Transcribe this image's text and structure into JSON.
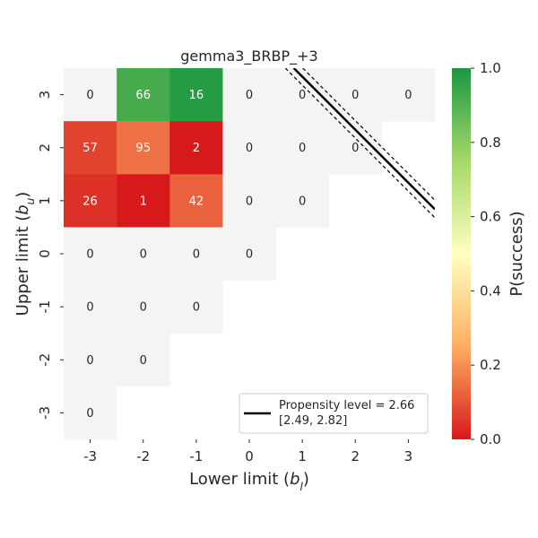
{
  "chart_data": {
    "type": "heatmap",
    "title": "gemma3_BRBP_+3",
    "xlabel": "Lower limit (b_l)",
    "ylabel": "Upper limit (b_u)",
    "x_categories": [
      "-3",
      "-2",
      "-1",
      "0",
      "1",
      "2",
      "3"
    ],
    "y_categories": [
      "3",
      "2",
      "1",
      "0",
      "-1",
      "-2",
      "-3"
    ],
    "cells": [
      {
        "x": "-3",
        "y": "3",
        "count": "0",
        "p": null
      },
      {
        "x": "-2",
        "y": "3",
        "count": "66",
        "p": 0.92
      },
      {
        "x": "-1",
        "y": "3",
        "count": "16",
        "p": 0.98
      },
      {
        "x": "0",
        "y": "3",
        "count": "0",
        "p": null
      },
      {
        "x": "1",
        "y": "3",
        "count": "0",
        "p": null
      },
      {
        "x": "2",
        "y": "3",
        "count": "0",
        "p": null
      },
      {
        "x": "3",
        "y": "3",
        "count": "0",
        "p": null
      },
      {
        "x": "-3",
        "y": "2",
        "count": "57",
        "p": 0.07
      },
      {
        "x": "-2",
        "y": "2",
        "count": "95",
        "p": 0.15
      },
      {
        "x": "-1",
        "y": "2",
        "count": "2",
        "p": 0.0
      },
      {
        "x": "0",
        "y": "2",
        "count": "0",
        "p": null
      },
      {
        "x": "1",
        "y": "2",
        "count": "0",
        "p": null
      },
      {
        "x": "2",
        "y": "2",
        "count": "0",
        "p": null
      },
      {
        "x": "-3",
        "y": "1",
        "count": "26",
        "p": 0.04
      },
      {
        "x": "-2",
        "y": "1",
        "count": "1",
        "p": 0.0
      },
      {
        "x": "-1",
        "y": "1",
        "count": "42",
        "p": 0.12
      },
      {
        "x": "0",
        "y": "1",
        "count": "0",
        "p": null
      },
      {
        "x": "1",
        "y": "1",
        "count": "0",
        "p": null
      },
      {
        "x": "-3",
        "y": "0",
        "count": "0",
        "p": null
      },
      {
        "x": "-2",
        "y": "0",
        "count": "0",
        "p": null
      },
      {
        "x": "-1",
        "y": "0",
        "count": "0",
        "p": null
      },
      {
        "x": "0",
        "y": "0",
        "count": "0",
        "p": null
      },
      {
        "x": "-3",
        "y": "-1",
        "count": "0",
        "p": null
      },
      {
        "x": "-2",
        "y": "-1",
        "count": "0",
        "p": null
      },
      {
        "x": "-1",
        "y": "-1",
        "count": "0",
        "p": null
      },
      {
        "x": "-3",
        "y": "-2",
        "count": "0",
        "p": null
      },
      {
        "x": "-2",
        "y": "-2",
        "count": "0",
        "p": null
      },
      {
        "x": "-3",
        "y": "-3",
        "count": "0",
        "p": null
      }
    ],
    "colorbar": {
      "label": "P(success)",
      "range": [
        0.0,
        1.0
      ],
      "ticks": [
        "0.0",
        "0.2",
        "0.4",
        "0.6",
        "0.8",
        "1.0"
      ],
      "colors": [
        "#d7191c",
        "#fdae61",
        "#ffffbf",
        "#a6d96a",
        "#1a9641"
      ]
    },
    "empty_cell_color": "#f4f4f4",
    "propensity": {
      "level": 2.66,
      "ci": [
        2.49,
        2.82
      ],
      "line_label": "Propensity level = 2.66",
      "ci_label": "[2.49, 2.82]"
    },
    "legend_placement": "lower-right",
    "grid": false
  }
}
